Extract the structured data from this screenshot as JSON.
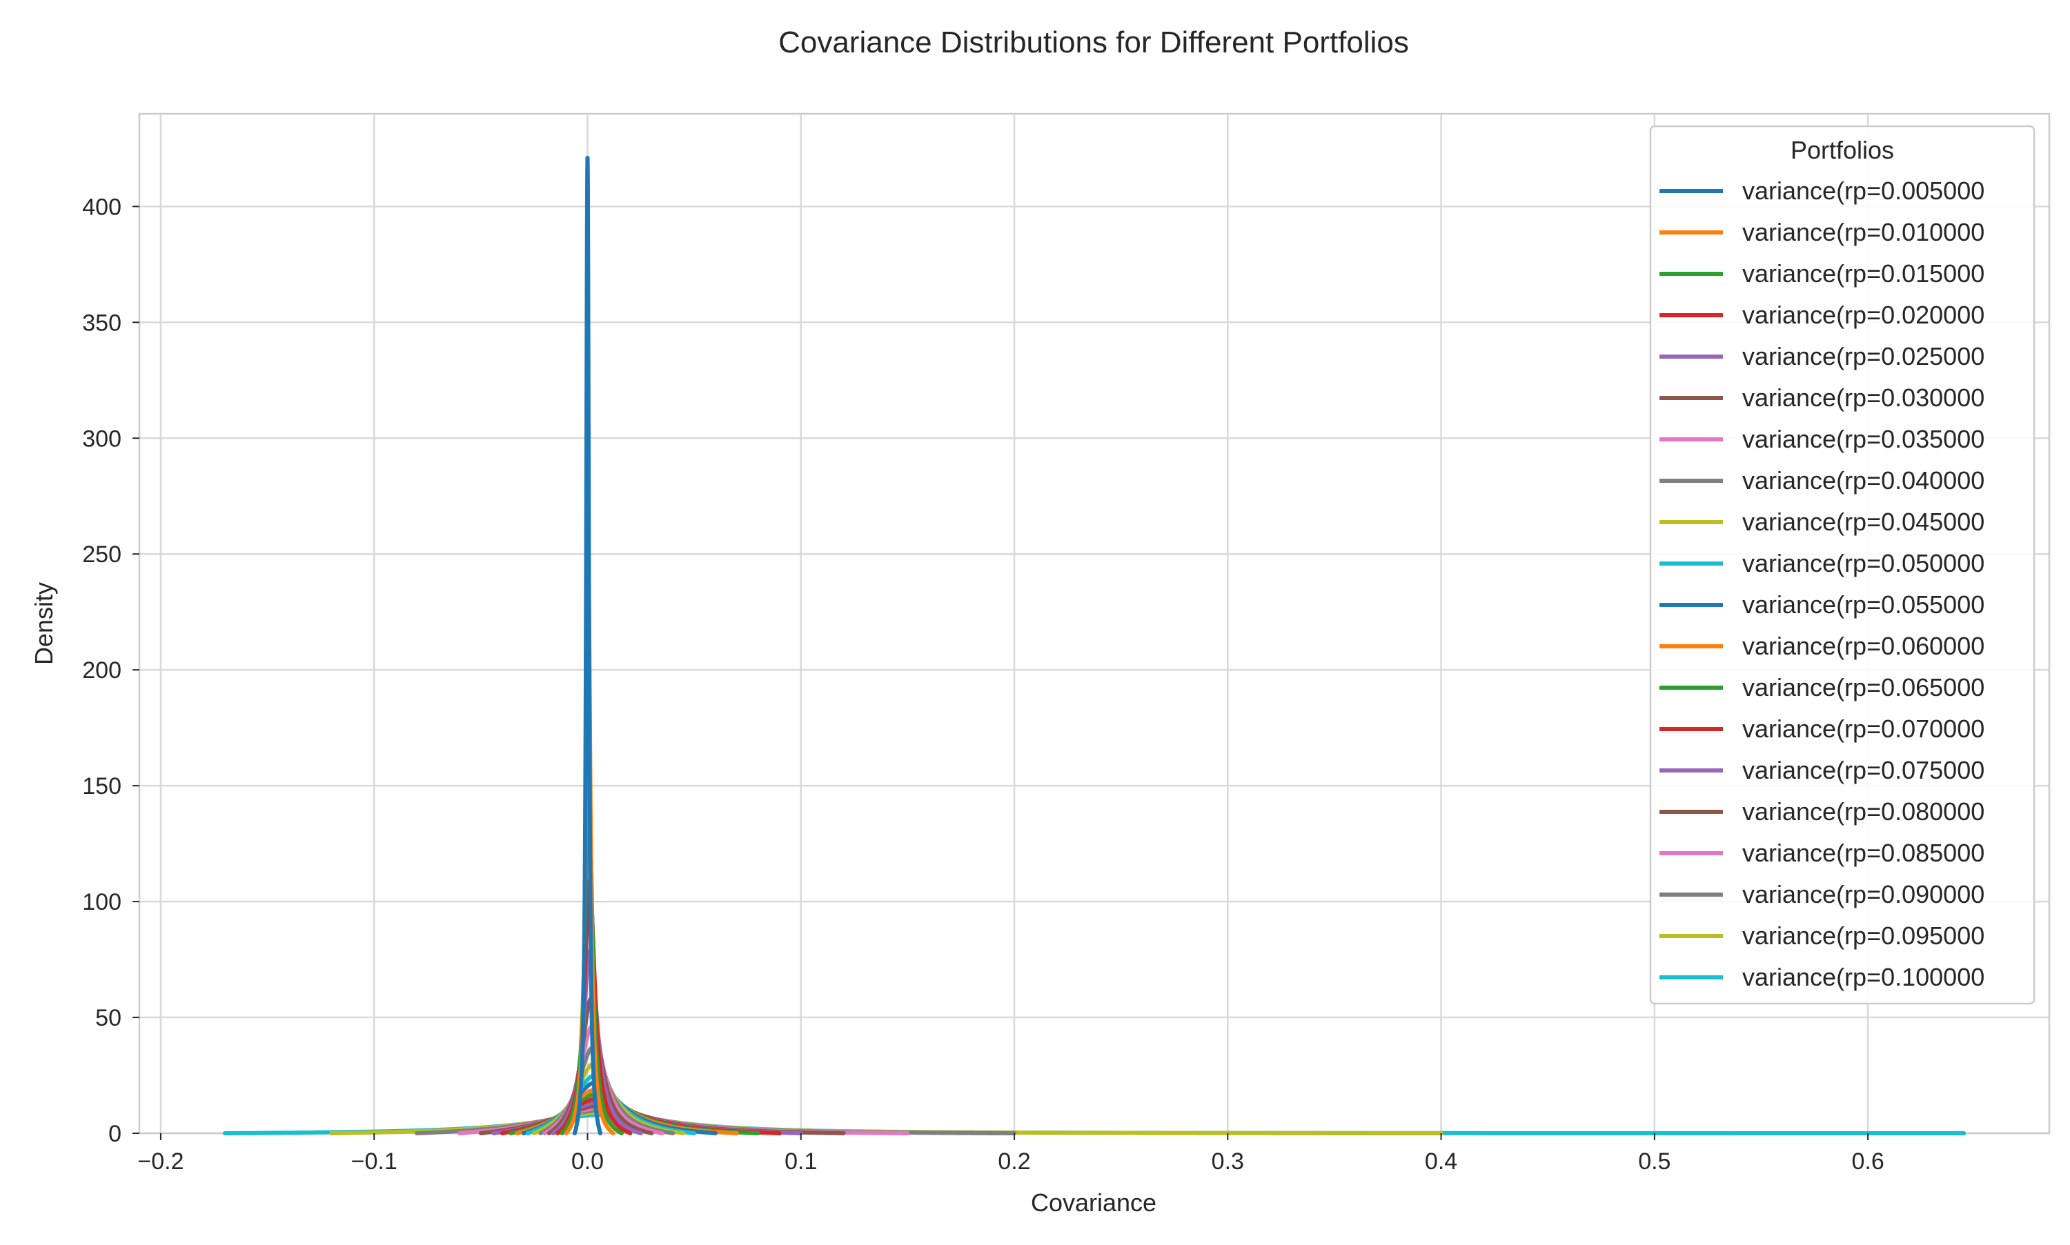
{
  "chart_data": {
    "type": "line",
    "title": "Covariance Distributions for Different Portfolios",
    "xlabel": "Covariance",
    "ylabel": "Density",
    "xlim": [
      -0.21,
      0.685
    ],
    "ylim": [
      0,
      440
    ],
    "xticks": [
      -0.2,
      -0.1,
      0.0,
      0.1,
      0.2,
      0.3,
      0.4,
      0.5,
      0.6
    ],
    "xtick_labels": [
      "−0.2",
      "−0.1",
      "0.0",
      "0.1",
      "0.2",
      "0.3",
      "0.4",
      "0.5",
      "0.6"
    ],
    "yticks": [
      0,
      50,
      100,
      150,
      200,
      250,
      300,
      350,
      400
    ],
    "ytick_labels": [
      "0",
      "50",
      "100",
      "150",
      "200",
      "250",
      "300",
      "350",
      "400"
    ],
    "grid": true,
    "legend": {
      "title": "Portfolios",
      "placement": "top-right"
    },
    "series": [
      {
        "name": "variance(rp=0.005000",
        "color": "#1f77b4",
        "peak_x": 0.0,
        "peak_density": 421,
        "x_min": -0.006,
        "x_max": 0.006
      },
      {
        "name": "variance(rp=0.010000",
        "color": "#ff7f0e",
        "peak_x": 0.0003,
        "peak_density": 250,
        "x_min": -0.01,
        "x_max": 0.012
      },
      {
        "name": "variance(rp=0.015000",
        "color": "#2ca02c",
        "peak_x": 0.0005,
        "peak_density": 160,
        "x_min": -0.012,
        "x_max": 0.016
      },
      {
        "name": "variance(rp=0.020000",
        "color": "#d62728",
        "peak_x": 0.001,
        "peak_density": 109,
        "x_min": -0.014,
        "x_max": 0.02
      },
      {
        "name": "variance(rp=0.025000",
        "color": "#9467bd",
        "peak_x": 0.0013,
        "peak_density": 79,
        "x_min": -0.016,
        "x_max": 0.025
      },
      {
        "name": "variance(rp=0.030000",
        "color": "#8c564b",
        "peak_x": 0.0016,
        "peak_density": 58,
        "x_min": -0.018,
        "x_max": 0.03
      },
      {
        "name": "variance(rp=0.035000",
        "color": "#e377c2",
        "peak_x": 0.002,
        "peak_density": 46,
        "x_min": -0.02,
        "x_max": 0.035
      },
      {
        "name": "variance(rp=0.040000",
        "color": "#7f7f7f",
        "peak_x": 0.0024,
        "peak_density": 37,
        "x_min": -0.022,
        "x_max": 0.04
      },
      {
        "name": "variance(rp=0.045000",
        "color": "#bcbd22",
        "peak_x": 0.0028,
        "peak_density": 30,
        "x_min": -0.025,
        "x_max": 0.045
      },
      {
        "name": "variance(rp=0.050000",
        "color": "#17becf",
        "peak_x": 0.0032,
        "peak_density": 25,
        "x_min": -0.028,
        "x_max": 0.05
      },
      {
        "name": "variance(rp=0.055000",
        "color": "#1f77b4",
        "peak_x": 0.0036,
        "peak_density": 22,
        "x_min": -0.03,
        "x_max": 0.06
      },
      {
        "name": "variance(rp=0.060000",
        "color": "#ff7f0e",
        "peak_x": 0.004,
        "peak_density": 19,
        "x_min": -0.033,
        "x_max": 0.07
      },
      {
        "name": "variance(rp=0.065000",
        "color": "#2ca02c",
        "peak_x": 0.0045,
        "peak_density": 17,
        "x_min": -0.036,
        "x_max": 0.08
      },
      {
        "name": "variance(rp=0.070000",
        "color": "#d62728",
        "peak_x": 0.005,
        "peak_density": 15,
        "x_min": -0.04,
        "x_max": 0.09
      },
      {
        "name": "variance(rp=0.075000",
        "color": "#9467bd",
        "peak_x": 0.0055,
        "peak_density": 13.5,
        "x_min": -0.044,
        "x_max": 0.1
      },
      {
        "name": "variance(rp=0.080000",
        "color": "#8c564b",
        "peak_x": 0.006,
        "peak_density": 12,
        "x_min": -0.05,
        "x_max": 0.12
      },
      {
        "name": "variance(rp=0.085000",
        "color": "#e377c2",
        "peak_x": 0.0065,
        "peak_density": 11,
        "x_min": -0.06,
        "x_max": 0.15
      },
      {
        "name": "variance(rp=0.090000",
        "color": "#7f7f7f",
        "peak_x": 0.007,
        "peak_density": 10,
        "x_min": -0.08,
        "x_max": 0.2
      },
      {
        "name": "variance(rp=0.095000",
        "color": "#bcbd22",
        "peak_x": 0.0075,
        "peak_density": 9,
        "x_min": -0.12,
        "x_max": 0.4
      },
      {
        "name": "variance(rp=0.100000",
        "color": "#17becf",
        "peak_x": 0.008,
        "peak_density": 8,
        "x_min": -0.17,
        "x_max": 0.645
      }
    ]
  }
}
